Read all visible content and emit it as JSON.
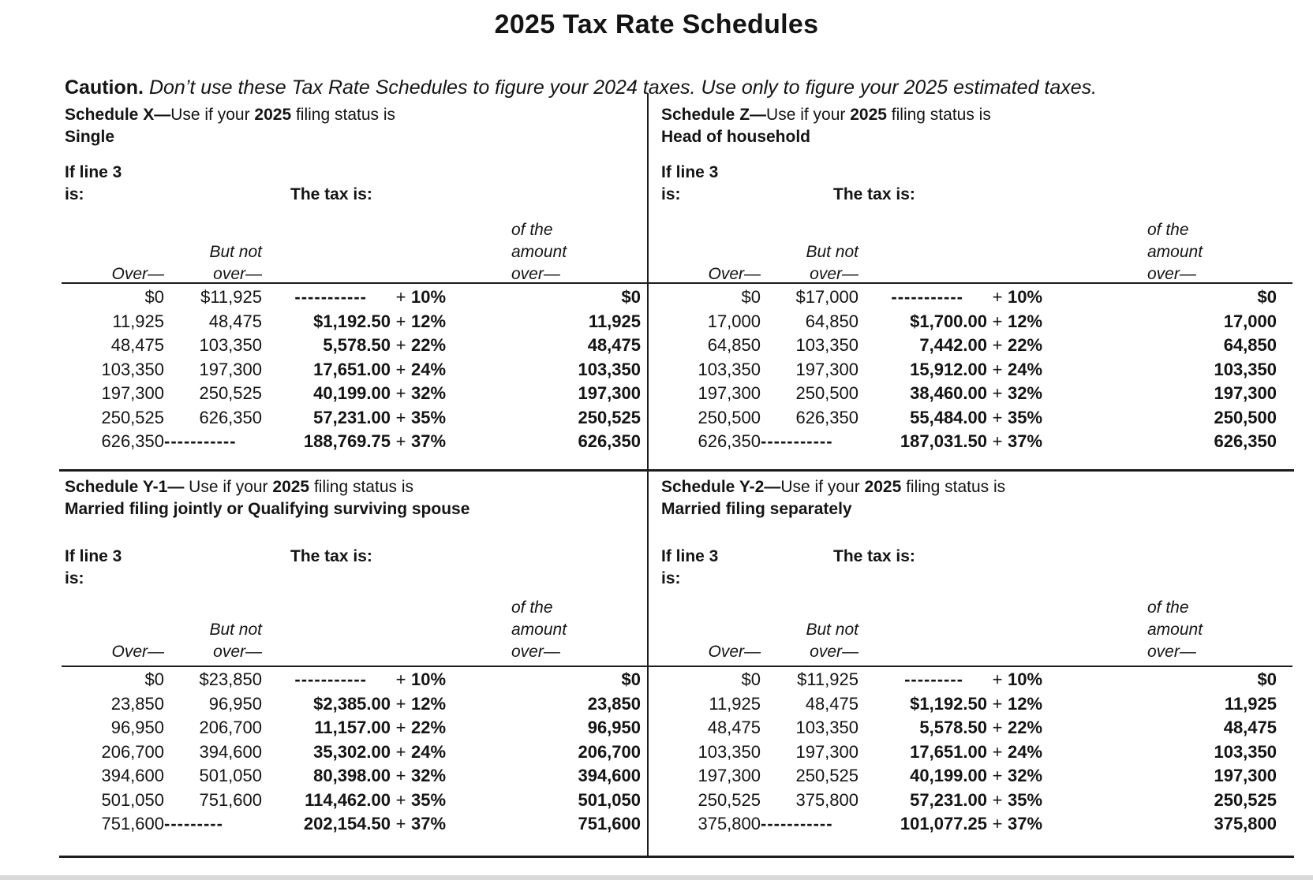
{
  "page": {
    "title": "2025 Tax Rate Schedules",
    "caution_label": "Caution.",
    "caution_text": "Don’t use these Tax Rate Schedules to figure your 2024 taxes. Use only to figure your 2025 estimated taxes."
  },
  "labels": {
    "if_line_1": "If line 3",
    "if_line_2": "is:",
    "tax_is": "The tax is:",
    "over": "Over—",
    "but_not_1": "But not",
    "but_not_2": "over—",
    "of_amount_1": "of the",
    "of_amount_2": "amount",
    "of_amount_3": "over—",
    "plus": "+"
  },
  "schedules": [
    {
      "id": "X",
      "title_lead": "Schedule X—",
      "title_mid": "Use if your ",
      "title_year": "2025",
      "title_tail": " filing status is",
      "status": "Single",
      "rows": [
        [
          "$0",
          "$11,925",
          "-----------",
          "10%",
          "$0"
        ],
        [
          "11,925",
          "48,475",
          "$1,192.50",
          "12%",
          "11,925"
        ],
        [
          "48,475",
          "103,350",
          "5,578.50",
          "22%",
          "48,475"
        ],
        [
          "103,350",
          "197,300",
          "17,651.00",
          "24%",
          "103,350"
        ],
        [
          "197,300",
          "250,525",
          "40,199.00",
          "32%",
          "197,300"
        ],
        [
          "250,525",
          "626,350",
          "57,231.00",
          "35%",
          "250,525"
        ],
        [
          "626,350",
          "-----------",
          "188,769.75",
          "37%",
          "626,350"
        ]
      ]
    },
    {
      "id": "Z",
      "title_lead": "Schedule Z—",
      "title_mid": "Use if your ",
      "title_year": "2025",
      "title_tail": " filing status is",
      "status": "Head of household",
      "rows": [
        [
          "$0",
          "$17,000",
          "-----------",
          "10%",
          "$0"
        ],
        [
          "17,000",
          "64,850",
          "$1,700.00",
          "12%",
          "17,000"
        ],
        [
          "64,850",
          "103,350",
          "7,442.00",
          "22%",
          "64,850"
        ],
        [
          "103,350",
          "197,300",
          "15,912.00",
          "24%",
          "103,350"
        ],
        [
          "197,300",
          "250,500",
          "38,460.00",
          "32%",
          "197,300"
        ],
        [
          "250,500",
          "626,350",
          "55,484.00",
          "35%",
          "250,500"
        ],
        [
          "626,350",
          "-----------",
          "187,031.50",
          "37%",
          "626,350"
        ]
      ]
    },
    {
      "id": "Y-1",
      "title_lead": "Schedule Y-1—",
      "title_mid": " Use if your ",
      "title_year": "2025",
      "title_tail": " filing status is",
      "status": "Married filing jointly or Qualifying surviving spouse",
      "rows": [
        [
          "$0",
          "$23,850",
          "-----------",
          "10%",
          "$0"
        ],
        [
          "23,850",
          "96,950",
          "$2,385.00",
          "12%",
          "23,850"
        ],
        [
          "96,950",
          "206,700",
          "11,157.00",
          "22%",
          "96,950"
        ],
        [
          "206,700",
          "394,600",
          "35,302.00",
          "24%",
          "206,700"
        ],
        [
          "394,600",
          "501,050",
          "80,398.00",
          "32%",
          "394,600"
        ],
        [
          "501,050",
          "751,600",
          "114,462.00",
          "35%",
          "501,050"
        ],
        [
          "751,600",
          "---------",
          "202,154.50",
          "37%",
          "751,600"
        ]
      ]
    },
    {
      "id": "Y-2",
      "title_lead": "Schedule Y-2—",
      "title_mid": "Use if your ",
      "title_year": "2025",
      "title_tail": " filing status is",
      "status": "Married filing separately",
      "rows": [
        [
          "$0",
          "$11,925",
          "---------",
          "10%",
          "$0"
        ],
        [
          "11,925",
          "48,475",
          "$1,192.50",
          "12%",
          "11,925"
        ],
        [
          "48,475",
          "103,350",
          "5,578.50",
          "22%",
          "48,475"
        ],
        [
          "103,350",
          "197,300",
          "17,651.00",
          "24%",
          "103,350"
        ],
        [
          "197,300",
          "250,525",
          "40,199.00",
          "32%",
          "197,300"
        ],
        [
          "250,525",
          "375,800",
          "57,231.00",
          "35%",
          "250,525"
        ],
        [
          "375,800",
          "-----------",
          "101,077.25",
          "37%",
          "375,800"
        ]
      ]
    }
  ],
  "colors": {
    "text": "#141414",
    "rule": "#1c1c1c",
    "background": "#ffffff",
    "scan_strip": "#d9d9d9"
  }
}
